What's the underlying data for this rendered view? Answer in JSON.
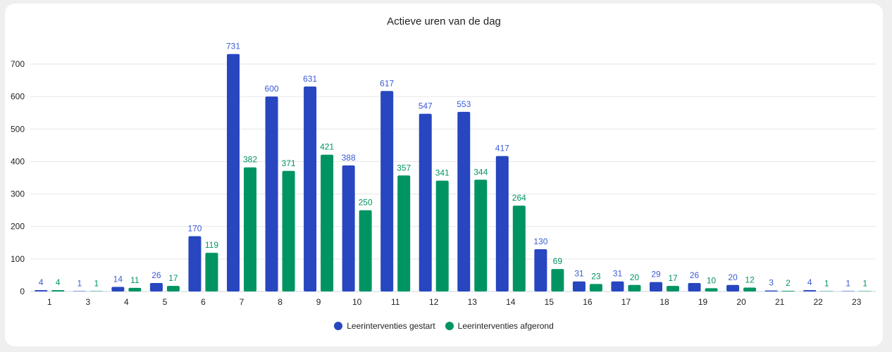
{
  "chart_data": {
    "type": "bar",
    "title": "Actieve uren van de dag",
    "categories": [
      "1",
      "3",
      "4",
      "5",
      "6",
      "7",
      "8",
      "9",
      "10",
      "11",
      "12",
      "13",
      "14",
      "15",
      "16",
      "17",
      "18",
      "19",
      "20",
      "21",
      "22",
      "23"
    ],
    "series": [
      {
        "name": "Leerinterventies gestart",
        "color": "#2746bf",
        "label_color": "#3b5bd4",
        "values": [
          4,
          1,
          14,
          26,
          170,
          731,
          600,
          631,
          388,
          617,
          547,
          553,
          417,
          130,
          31,
          31,
          29,
          26,
          20,
          3,
          4,
          1
        ]
      },
      {
        "name": "Leerinterventies afgerond",
        "color": "#009463",
        "label_color": "#009463",
        "values": [
          4,
          1,
          11,
          17,
          119,
          382,
          371,
          421,
          250,
          357,
          341,
          344,
          264,
          69,
          23,
          20,
          17,
          10,
          12,
          2,
          1,
          1
        ]
      }
    ],
    "ylim": [
      0,
      700
    ],
    "yticks": [
      0,
      100,
      200,
      300,
      400,
      500,
      600,
      700
    ],
    "grid": true,
    "data_labels": true,
    "legend_position": "bottom"
  }
}
